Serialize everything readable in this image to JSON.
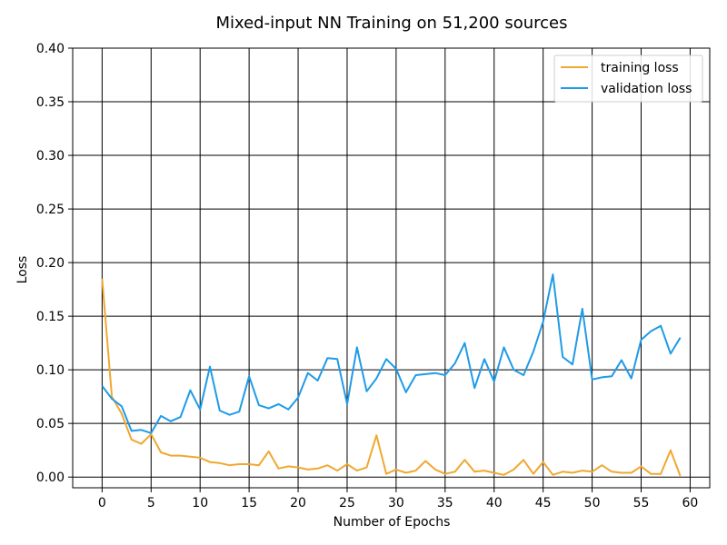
{
  "chart_data": {
    "type": "line",
    "title": "Mixed-input NN Training on 51,200 sources",
    "xlabel": "Number of Epochs",
    "ylabel": "Loss",
    "xlim": [
      -3,
      62
    ],
    "ylim": [
      -0.01,
      0.4
    ],
    "xticks": [
      0,
      5,
      10,
      15,
      20,
      25,
      30,
      35,
      40,
      45,
      50,
      55,
      60
    ],
    "xtick_labels": [
      "0",
      "5",
      "10",
      "15",
      "20",
      "25",
      "30",
      "35",
      "40",
      "45",
      "50",
      "55",
      "60"
    ],
    "yticks": [
      0.0,
      0.05,
      0.1,
      0.15,
      0.2,
      0.25,
      0.3,
      0.35,
      0.4
    ],
    "ytick_labels": [
      "0.00",
      "0.05",
      "0.10",
      "0.15",
      "0.20",
      "0.25",
      "0.30",
      "0.35",
      "0.40"
    ],
    "grid": true,
    "legend_position": "top-right",
    "x": [
      0,
      1,
      2,
      3,
      4,
      5,
      6,
      7,
      8,
      9,
      10,
      11,
      12,
      13,
      14,
      15,
      16,
      17,
      18,
      19,
      20,
      21,
      22,
      23,
      24,
      25,
      26,
      27,
      28,
      29,
      30,
      31,
      32,
      33,
      34,
      35,
      36,
      37,
      38,
      39,
      40,
      41,
      42,
      43,
      44,
      45,
      46,
      47,
      48,
      49,
      50,
      51,
      52,
      53,
      54,
      55,
      56,
      57,
      58,
      59
    ],
    "series": [
      {
        "name": "training loss",
        "color": "#f0a830",
        "values": [
          0.185,
          0.075,
          0.059,
          0.035,
          0.031,
          0.04,
          0.023,
          0.02,
          0.02,
          0.019,
          0.018,
          0.014,
          0.013,
          0.011,
          0.012,
          0.012,
          0.011,
          0.024,
          0.008,
          0.01,
          0.009,
          0.007,
          0.008,
          0.011,
          0.006,
          0.012,
          0.006,
          0.009,
          0.039,
          0.003,
          0.007,
          0.004,
          0.006,
          0.015,
          0.007,
          0.003,
          0.005,
          0.016,
          0.005,
          0.006,
          0.004,
          0.002,
          0.007,
          0.016,
          0.003,
          0.014,
          0.002,
          0.005,
          0.004,
          0.006,
          0.005,
          0.011,
          0.005,
          0.004,
          0.004,
          0.01,
          0.003,
          0.003,
          0.025,
          0.001
        ]
      },
      {
        "name": "validation loss",
        "color": "#1f9be8",
        "values": [
          0.085,
          0.073,
          0.066,
          0.043,
          0.044,
          0.041,
          0.057,
          0.052,
          0.056,
          0.081,
          0.063,
          0.103,
          0.062,
          0.058,
          0.061,
          0.094,
          0.067,
          0.064,
          0.068,
          0.063,
          0.074,
          0.097,
          0.09,
          0.111,
          0.11,
          0.068,
          0.121,
          0.08,
          0.092,
          0.11,
          0.101,
          0.079,
          0.095,
          0.096,
          0.097,
          0.095,
          0.106,
          0.125,
          0.083,
          0.11,
          0.089,
          0.121,
          0.1,
          0.095,
          0.117,
          0.145,
          0.189,
          0.112,
          0.105,
          0.157,
          0.091,
          0.093,
          0.094,
          0.109,
          0.092,
          0.128,
          0.136,
          0.141,
          0.115,
          0.13
        ]
      }
    ]
  }
}
